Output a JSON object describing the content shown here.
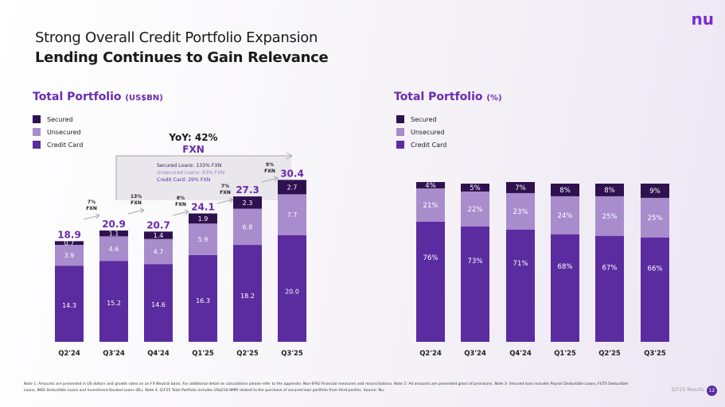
{
  "header": {
    "title": "Strong Overall Credit Portfolio Expansion",
    "subtitle": "Lending Continues to Gain Relevance",
    "logo": "nu"
  },
  "colors": {
    "secured": "#2f1150",
    "unsecured": "#a88ccc",
    "credit_card": "#5b2ba0",
    "accent": "#6a2bb0"
  },
  "chart_data": [
    {
      "type": "bar",
      "stacked": true,
      "title": "Total Portfolio",
      "title_unit": "(US$BN)",
      "legend": "top-left",
      "categories": [
        "Q2'24",
        "Q3'24",
        "Q4'24",
        "Q1'25",
        "Q2'25",
        "Q3'25"
      ],
      "series": [
        {
          "name": "Credit Card",
          "values": [
            14.3,
            15.2,
            14.6,
            16.3,
            18.2,
            20.0
          ]
        },
        {
          "name": "Unsecured",
          "values": [
            3.9,
            4.6,
            4.7,
            5.9,
            6.8,
            7.7
          ]
        },
        {
          "name": "Secured",
          "values": [
            0.7,
            1.1,
            1.4,
            1.9,
            2.3,
            2.7
          ]
        }
      ],
      "totals": [
        "18.9",
        "20.9",
        "20.7",
        "24.1",
        "27.3",
        "30.4"
      ],
      "value_labels": [
        [
          "14.3",
          "3.9",
          "0.7"
        ],
        [
          "15.2",
          "4.6",
          "1.1"
        ],
        [
          "14.6",
          "4.7",
          "1.4"
        ],
        [
          "16.3",
          "5.9",
          "1.9"
        ],
        [
          "18.2",
          "6.8",
          "2.3"
        ],
        [
          "20.0",
          "7.7",
          "2.7"
        ]
      ],
      "growth": [
        "7%\nFXN",
        "13%\nFXN",
        "8%\nFXN",
        "7%\nFXN",
        "9%\nFXN"
      ],
      "yoy": {
        "title": "YoY: 42%",
        "sub": "FXN",
        "lines": [
          "Secured Loans: 133% FXN",
          "Unsecured Loans: 63% FXN",
          "Credit Card: 29% FXN"
        ]
      }
    },
    {
      "type": "bar",
      "stacked": true,
      "title": "Total Portfolio",
      "title_unit": "(%)",
      "legend": "top-left",
      "categories": [
        "Q2'24",
        "Q3'24",
        "Q4'24",
        "Q1'25",
        "Q2'25",
        "Q3'25"
      ],
      "series": [
        {
          "name": "Credit Card",
          "values": [
            76,
            73,
            71,
            68,
            67,
            66
          ]
        },
        {
          "name": "Unsecured",
          "values": [
            21,
            22,
            23,
            24,
            25,
            25
          ]
        },
        {
          "name": "Secured",
          "values": [
            4,
            5,
            7,
            8,
            8,
            9
          ]
        }
      ]
    }
  ],
  "legend": {
    "secured": "Secured",
    "unsecured": "Unsecured",
    "credit_card": "Credit Card"
  },
  "footnote": "Note 1: Amounts are presented in US dollars and growth rates on an FX Neutral basis. For additional detail on calculations please refer to the appendix: Non-IFRS Financial measures and reconciliations. Note 2: All amounts are presented gross of provisions. Note 3: Secured loan includes Payroll Deductible Loans, FGTS Deductible Loans, INSS Deductible Loans and Investment Backed Loans (BL). Note 4: Q3'25 Total Portfolio includes US$218.9MM related to the purchase of secured loan portfolio from third-parties. Source: Nu.",
  "footer": {
    "label": "Q3'25 Results",
    "page": "12"
  }
}
